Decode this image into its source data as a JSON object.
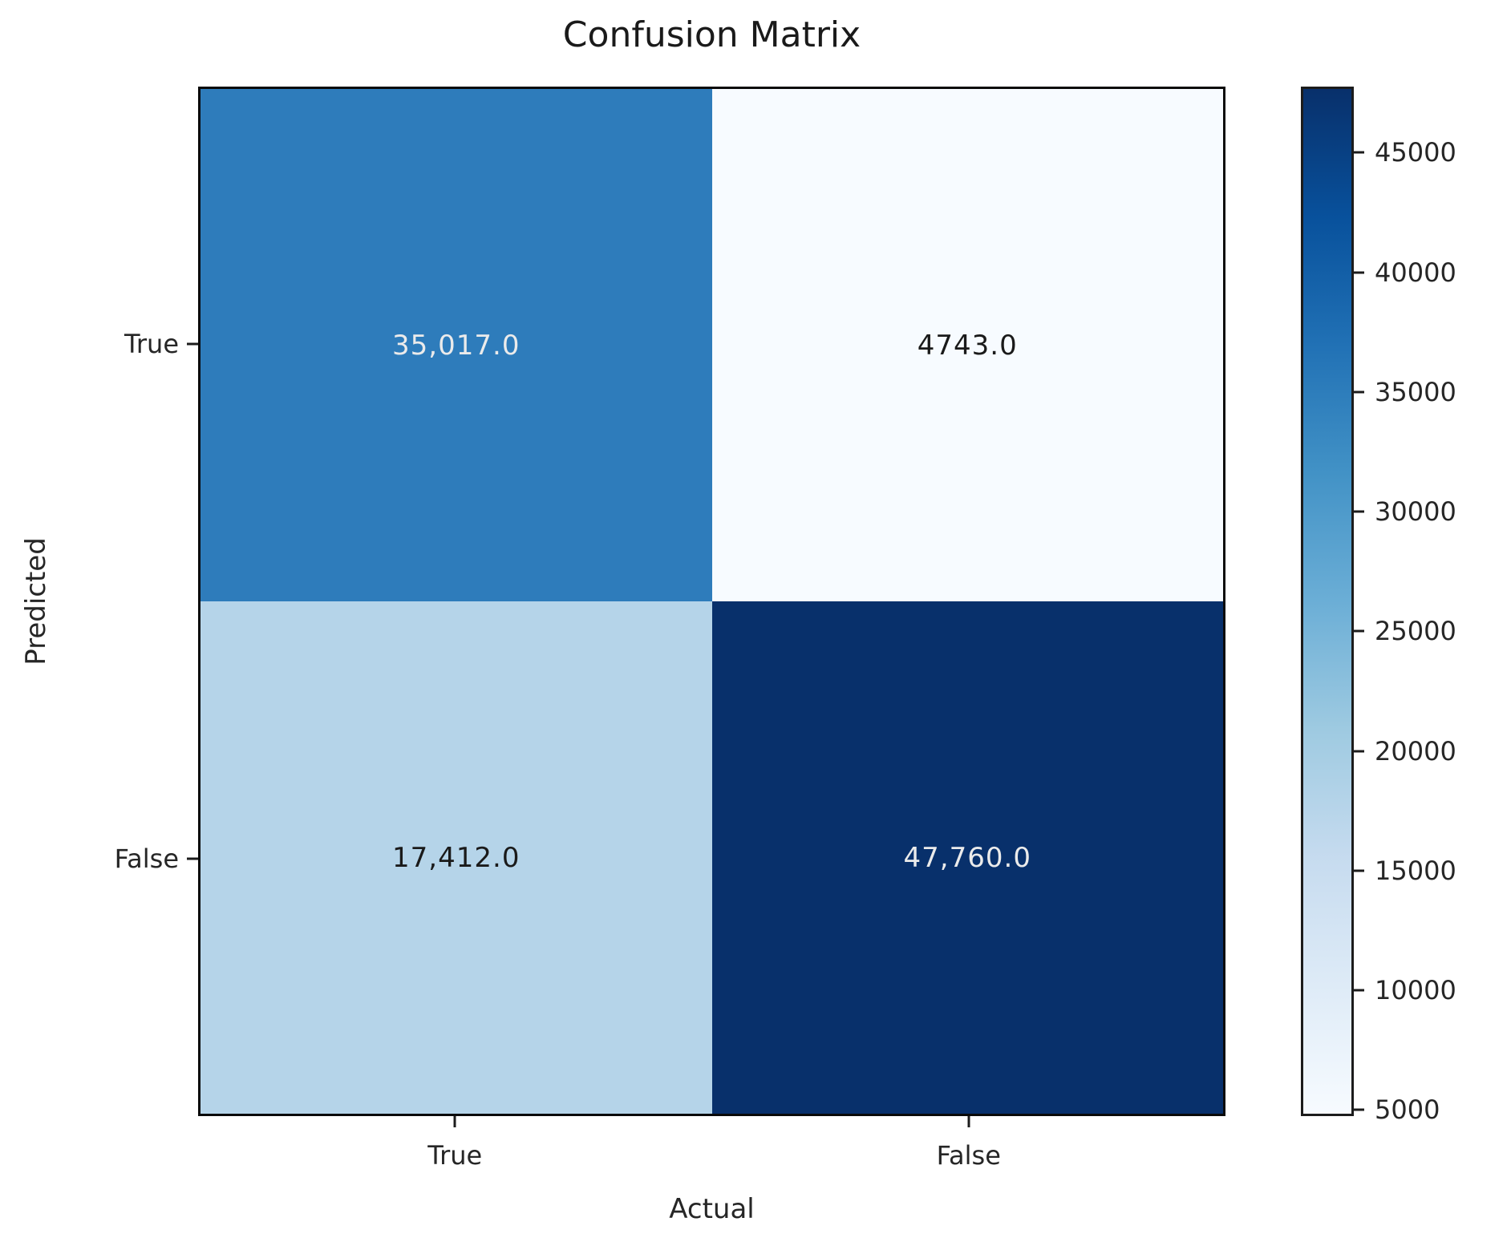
{
  "chart_data": {
    "type": "heatmap",
    "title": "Confusion Matrix",
    "xlabel": "Actual",
    "ylabel": "Predicted",
    "x_categories": [
      "True",
      "False"
    ],
    "y_categories": [
      "True",
      "False"
    ],
    "matrix": [
      [
        35017.0,
        4743.0
      ],
      [
        17412.0,
        47760.0
      ]
    ],
    "cell_labels": [
      [
        "35,017.0",
        "4743.0"
      ],
      [
        "17,412.0",
        "47,760.0"
      ]
    ],
    "cell_colors": [
      [
        "#2e7cbb",
        "#f7fbff"
      ],
      [
        "#b5d4e9",
        "#08306b"
      ]
    ],
    "cell_text_colors": [
      [
        "#ebebeb",
        "#1a1a1a"
      ],
      [
        "#1a1a1a",
        "#ebebeb"
      ]
    ],
    "colormap": "Blues",
    "vmin": 4743,
    "vmax": 47760,
    "colorbar_ticks": [
      45000,
      40000,
      35000,
      30000,
      25000,
      20000,
      15000,
      10000,
      5000
    ],
    "colorbar_gradient_top_to_bottom": [
      "#08306b",
      "#08519c",
      "#2171b5",
      "#4292c6",
      "#6baed6",
      "#9ecae1",
      "#c6dbef",
      "#deebf7",
      "#f7fbff"
    ],
    "legend_position": "right",
    "grid": "off"
  }
}
